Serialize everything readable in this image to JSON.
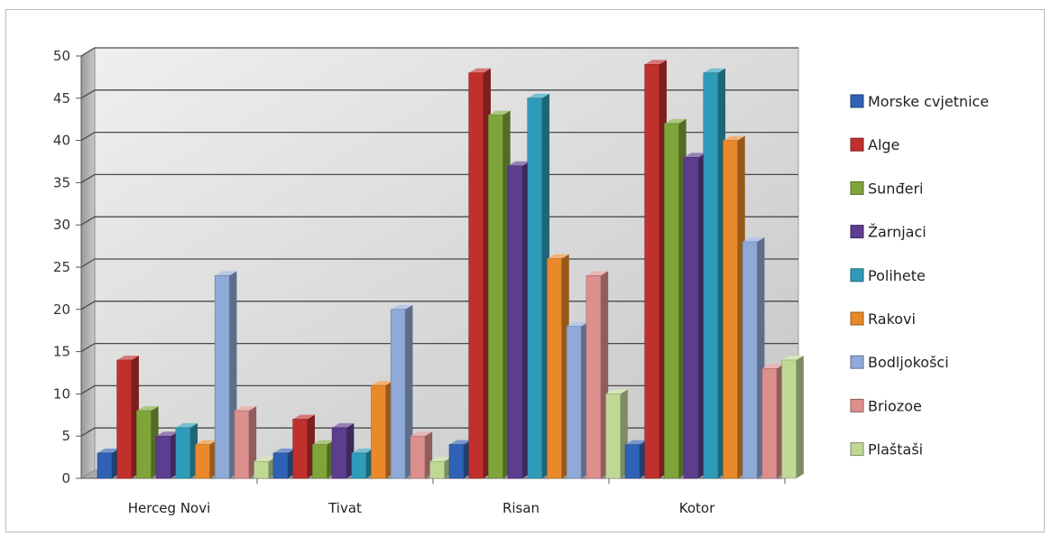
{
  "chart_data": {
    "type": "bar",
    "title": "",
    "xlabel": "",
    "ylabel": "",
    "categories": [
      "Herceg Novi",
      "Tivat",
      "Risan",
      "Kotor"
    ],
    "ylim": [
      0,
      50
    ],
    "yticks": [
      0,
      5,
      10,
      15,
      20,
      25,
      30,
      35,
      40,
      45,
      50
    ],
    "grid": true,
    "legend_position": "right",
    "series": [
      {
        "name": "Morske cvjetnice",
        "color": "#2f62b5",
        "values": [
          3,
          3,
          4,
          4
        ]
      },
      {
        "name": "Alge",
        "color": "#c0302c",
        "values": [
          14,
          7,
          48,
          49
        ]
      },
      {
        "name": "Sunđeri",
        "color": "#7fa53a",
        "values": [
          8,
          4,
          43,
          42
        ]
      },
      {
        "name": "Žarnjaci",
        "color": "#5c3d8e",
        "values": [
          5,
          6,
          37,
          38
        ]
      },
      {
        "name": "Polihete",
        "color": "#2f9bb8",
        "values": [
          6,
          3,
          45,
          48
        ]
      },
      {
        "name": "Rakovi",
        "color": "#e9892a",
        "values": [
          4,
          11,
          26,
          40
        ]
      },
      {
        "name": "Bodljokošci",
        "color": "#8fa9d8",
        "values": [
          24,
          20,
          18,
          28
        ]
      },
      {
        "name": "Briozoe",
        "color": "#dc8f8c",
        "values": [
          8,
          5,
          24,
          13
        ]
      },
      {
        "name": "Plaštaši",
        "color": "#c0d896",
        "values": [
          2,
          2,
          10,
          14
        ]
      }
    ]
  }
}
